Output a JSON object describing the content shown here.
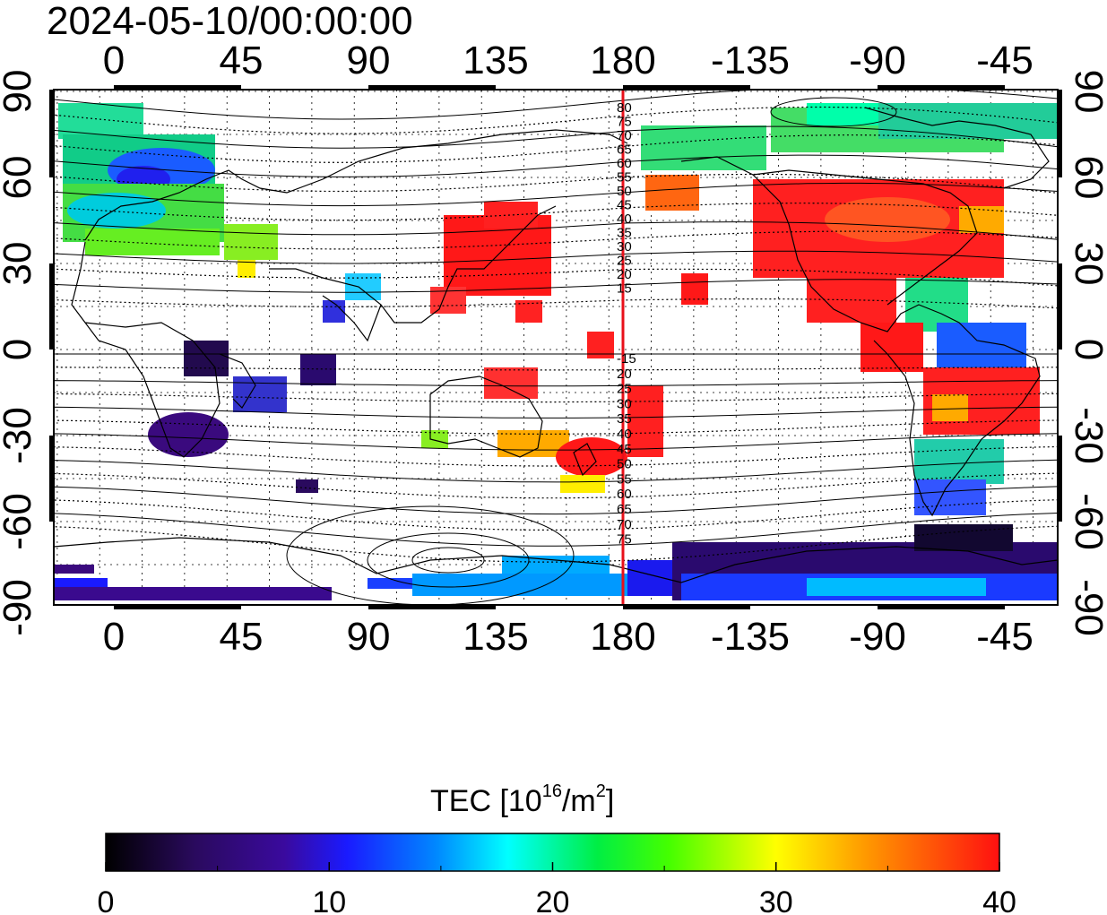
{
  "title": "2024-05-10/00:00:00",
  "map": {
    "x_ticks_top": [
      "0",
      "45",
      "90",
      "135",
      "180",
      "-135",
      "-90",
      "-45"
    ],
    "x_ticks_bottom": [
      "0",
      "45",
      "90",
      "135",
      "180",
      "-135",
      "-90",
      "-45"
    ],
    "y_ticks_left": [
      "90",
      "60",
      "30",
      "0",
      "-30",
      "-60",
      "-90"
    ],
    "y_ticks_right": [
      "90",
      "60",
      "30",
      "0",
      "-30",
      "-60",
      "-90"
    ],
    "contour_labels_north": [
      "80",
      "75",
      "70",
      "65",
      "60",
      "55",
      "50",
      "45",
      "40",
      "35",
      "30",
      "25",
      "20",
      "15"
    ],
    "contour_labels_south": [
      "-15",
      "20",
      "25",
      "30",
      "35",
      "40",
      "45",
      "50",
      "55",
      "60",
      "65",
      "70",
      "75"
    ],
    "meridian_line_label": "180",
    "meridian_line_color": "#e8101a"
  },
  "colorbar": {
    "title_main": "TEC  [10",
    "title_sup1": "16",
    "title_mid": "/m",
    "title_sup2": "2",
    "title_end": "]",
    "ticks": [
      "0",
      "10",
      "20",
      "30",
      "40"
    ],
    "min": 0,
    "max": 40
  },
  "colors": {
    "palette": [
      "#000000",
      "#3a0a6e",
      "#1a1aff",
      "#00aaff",
      "#00ffcc",
      "#00dd00",
      "#ffff00",
      "#ff8800",
      "#ff1010"
    ]
  }
}
